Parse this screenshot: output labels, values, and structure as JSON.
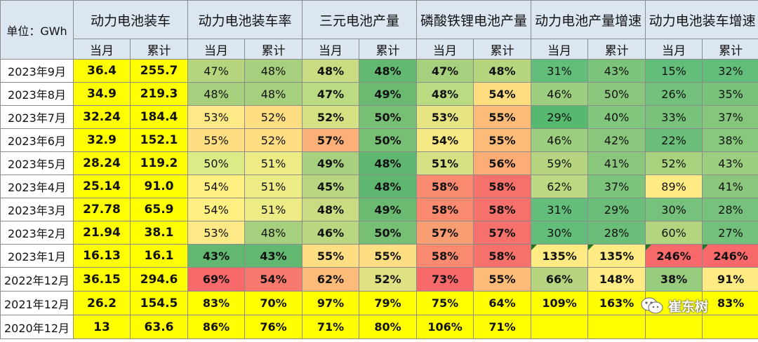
{
  "header": {
    "unit": "单位：GWh",
    "groups": [
      "动力电池装车",
      "动力电池装车率",
      "三元电池产量",
      "磷酸铁锂电池产量",
      "动力电池产量增速",
      "动力电池装车增速"
    ],
    "sub": [
      "当月",
      "累计"
    ]
  },
  "rows": [
    {
      "date": "2023年9月",
      "cells": [
        "36.4",
        "255.7",
        "47%",
        "48%",
        "48%",
        "48%",
        "47%",
        "48%",
        "31%",
        "43%",
        "15%",
        "32%"
      ]
    },
    {
      "date": "2023年8月",
      "cells": [
        "34.9",
        "219.3",
        "48%",
        "48%",
        "47%",
        "49%",
        "48%",
        "54%",
        "46%",
        "50%",
        "26%",
        "35%"
      ]
    },
    {
      "date": "2023年7月",
      "cells": [
        "32.24",
        "184.4",
        "53%",
        "52%",
        "52%",
        "50%",
        "53%",
        "55%",
        "29%",
        "40%",
        "33%",
        "37%"
      ]
    },
    {
      "date": "2023年6月",
      "cells": [
        "32.9",
        "152.1",
        "55%",
        "52%",
        "57%",
        "50%",
        "54%",
        "55%",
        "46%",
        "42%",
        "22%",
        "38%"
      ]
    },
    {
      "date": "2023年5月",
      "cells": [
        "28.24",
        "119.2",
        "50%",
        "51%",
        "49%",
        "48%",
        "51%",
        "56%",
        "59%",
        "41%",
        "52%",
        "43%"
      ]
    },
    {
      "date": "2023年4月",
      "cells": [
        "25.14",
        "91.0",
        "54%",
        "51%",
        "45%",
        "48%",
        "58%",
        "58%",
        "62%",
        "37%",
        "89%",
        "41%"
      ]
    },
    {
      "date": "2023年3月",
      "cells": [
        "27.78",
        "65.9",
        "54%",
        "51%",
        "48%",
        "49%",
        "58%",
        "58%",
        "31%",
        "29%",
        "30%",
        "28%"
      ]
    },
    {
      "date": "2023年2月",
      "cells": [
        "21.94",
        "38.1",
        "53%",
        "48%",
        "46%",
        "50%",
        "57%",
        "57%",
        "30%",
        "28%",
        "60%",
        "27%"
      ]
    },
    {
      "date": "2023年1月",
      "cells": [
        "16.13",
        "16.1",
        "43%",
        "43%",
        "55%",
        "55%",
        "58%",
        "58%",
        "135%",
        "135%",
        "246%",
        "246%"
      ]
    },
    {
      "date": "2022年12月",
      "cells": [
        "36.15",
        "294.6",
        "69%",
        "54%",
        "62%",
        "52%",
        "73%",
        "55%",
        "66%",
        "148%",
        "38%",
        "91%"
      ]
    },
    {
      "date": "2021年12月",
      "cells": [
        "26.2",
        "154.5",
        "83%",
        "70%",
        "97%",
        "79%",
        "75%",
        "64%",
        "109%",
        "163%",
        "",
        "83%"
      ]
    },
    {
      "date": "2020年12月",
      "cells": [
        "13",
        "63.6",
        "86%",
        "76%",
        "71%",
        "80%",
        "106%",
        "71%",
        "",
        "",
        "",
        ""
      ]
    }
  ],
  "colors": [
    [
      "#ffff00",
      "#ffff00",
      "#b5d67f",
      "#a6d07d",
      "#c9dc82",
      "#62b771",
      "#a6d07d",
      "#b5d67f",
      "#63be7b",
      "#7cc47c",
      "#63be7b",
      "#63be7b"
    ],
    [
      "#ffff00",
      "#ffff00",
      "#a6d07d",
      "#a6d07d",
      "#badb82",
      "#6aba72",
      "#badb82",
      "#fedd81",
      "#9dcd7e",
      "#8ac77d",
      "#72c07b",
      "#78c27b"
    ],
    [
      "#ffff00",
      "#ffff00",
      "#fde985",
      "#ffdd83",
      "#d6e184",
      "#76bf74",
      "#e6e483",
      "#fcbb79",
      "#57b86f",
      "#80c67c",
      "#78c27b",
      "#85c67c"
    ],
    [
      "#ffff00",
      "#ffff00",
      "#fede82",
      "#ffdd83",
      "#fbb078",
      "#76bf74",
      "#f6e884",
      "#fcbb79",
      "#9dcd7e",
      "#8ac77d",
      "#6bbe7a",
      "#88c87d"
    ],
    [
      "#ffff00",
      "#ffff00",
      "#ddeb86",
      "#edeb86",
      "#a8d17f",
      "#5fb670",
      "#d6e184",
      "#fdac76",
      "#b7d580",
      "#8ac77d",
      "#a9d27f",
      "#9dcd7e"
    ],
    [
      "#ffff00",
      "#ffff00",
      "#fff082",
      "#edeb86",
      "#b9d780",
      "#5fb670",
      "#f98a70",
      "#f6716b",
      "#bcd981",
      "#7cc47c",
      "#ffeb84",
      "#8ac77d"
    ],
    [
      "#ffff00",
      "#ffff00",
      "#fff082",
      "#edeb86",
      "#c9dc82",
      "#6aba72",
      "#f98a70",
      "#f6716b",
      "#63be7b",
      "#6bbe7a",
      "#76c17b",
      "#76c17b"
    ],
    [
      "#ffff00",
      "#ffff00",
      "#fde985",
      "#a6d07d",
      "#b9d780",
      "#76bf74",
      "#f99d73",
      "#f6716b",
      "#63be7b",
      "#6bbe7a",
      "#b3d580",
      "#72c07b"
    ],
    [
      "#ffff00",
      "#ffff00",
      "#62b771",
      "#62b771",
      "#fede82",
      "#fede82",
      "#f98a70",
      "#f6716b",
      "#ffeb84",
      "#ffeb84",
      "#f8696b",
      "#f8696b"
    ],
    [
      "#ffff00",
      "#ffff00",
      "#f8696b",
      "#f87a6e",
      "#fcbb79",
      "#dfe183",
      "#f8696b",
      "#fcbb79",
      "#b7d580",
      "#ffeb84",
      "#97cb7e",
      "#ffeb84"
    ],
    [
      "#ffff00",
      "#ffff00",
      "#ffff00",
      "#ffff00",
      "#ffff00",
      "#ffff00",
      "#ffff00",
      "#ffff00",
      "#ffff00",
      "#ffff00",
      "#ffff00",
      "#ffff00"
    ],
    [
      "#ffff00",
      "#ffff00",
      "#ffff00",
      "#ffff00",
      "#ffff00",
      "#ffff00",
      "#ffff00",
      "#ffff00",
      "#ffff00",
      "#ffff00",
      "#ffff00",
      "#ffff00"
    ]
  ],
  "bold_cols_rows": {
    "note": ""
  },
  "watermark": {
    "text": "崔东树"
  }
}
